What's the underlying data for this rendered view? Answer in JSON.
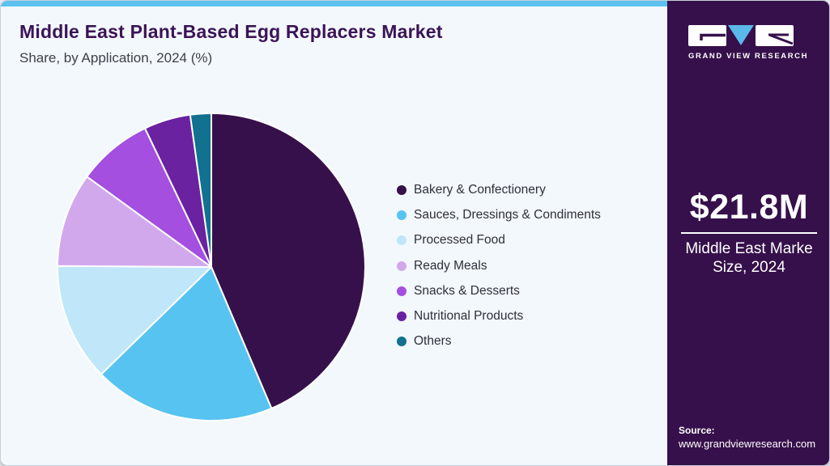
{
  "header": {
    "title": "Middle East Plant-Based Egg Replacers Market",
    "subtitle": "Share, by Application, 2024 (%)"
  },
  "branding": {
    "logo_text": "GRAND VIEW RESEARCH"
  },
  "sidebar": {
    "market_size_value": "$21.8M",
    "market_size_label_line1": "Middle East Marke",
    "market_size_label_line2": "Size, 2024",
    "source_label": "Source:",
    "source_url": "www.grandviewresearch.com"
  },
  "chart_data": {
    "type": "pie",
    "title": "Middle East Plant-Based Egg Replacers Market Share, by Application, 2024 (%)",
    "categories": [
      "Bakery & Confectionery",
      "Sauces, Dressings & Condiments",
      "Processed Food",
      "Ready Meals",
      "Snacks & Desserts",
      "Nutritional Products",
      "Others"
    ],
    "values": [
      43.6,
      19.1,
      12.4,
      9.9,
      7.9,
      4.9,
      2.2
    ],
    "colors": [
      "#36104b",
      "#57c3f1",
      "#bfe7f9",
      "#d2a8ed",
      "#a44fe0",
      "#6a22a0",
      "#11718f"
    ],
    "legend_position": "right",
    "start_angle_deg": 0,
    "direction": "clockwise",
    "slice_gap_color": "#ffffff"
  },
  "theme": {
    "accent_blue": "#5cc1ee",
    "panel_purple": "#36104a",
    "card_background": "#f3f8fc",
    "title_purple": "#3a1457"
  }
}
